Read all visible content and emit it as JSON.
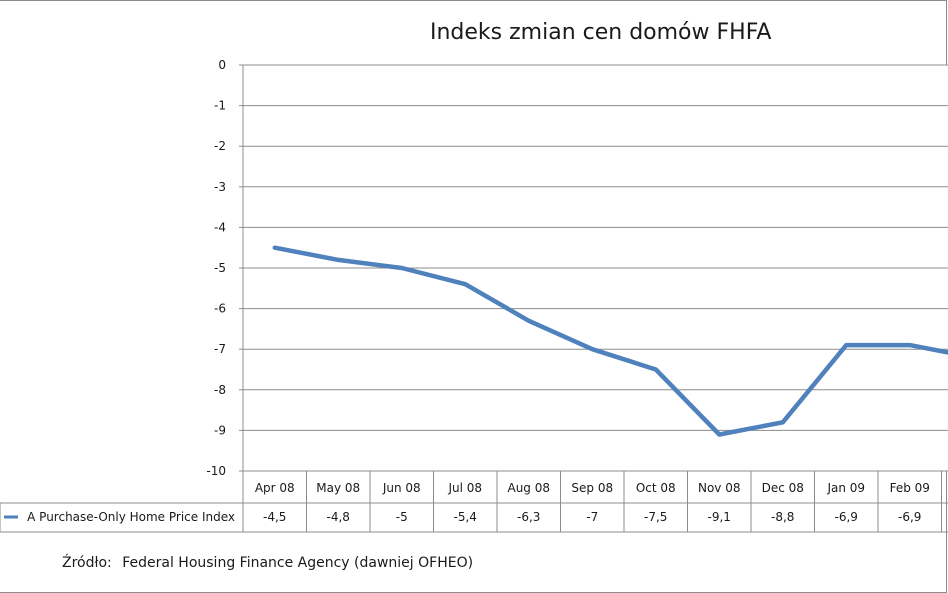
{
  "source": {
    "label": "Źródło:",
    "text": "Federal Housing Finance Agency (dawniej OFHEO)"
  },
  "colors": {
    "line": "#4f81bd",
    "grid": "#8c8c8c",
    "plot_background": "#ffffff"
  },
  "chart_data": {
    "type": "line",
    "title": "Indeks zmian cen domów FHFA",
    "xlabel": "",
    "ylabel": "",
    "ylim": [
      -10,
      0
    ],
    "yticks": [
      "0",
      "-1",
      "-2",
      "-3",
      "-4",
      "-5",
      "-6",
      "-7",
      "-8",
      "-9",
      "-10"
    ],
    "grid": true,
    "categories": [
      "Apr 08",
      "May 08",
      "Jun 08",
      "Jul 08",
      "Aug 08",
      "Sep 08",
      "Oct 08",
      "Nov 08",
      "Dec 08",
      "Jan 09",
      "Feb 09",
      ""
    ],
    "series": [
      {
        "name": "A Purchase-Only Home Price Index",
        "values": [
          -4.5,
          -4.8,
          -5.0,
          -5.4,
          -6.3,
          -7.0,
          -7.5,
          -9.1,
          -8.8,
          -6.9,
          -6.9,
          -7.2
        ],
        "labels": [
          "-4,5",
          "-4,8",
          "-5",
          "-5,4",
          "-6,3",
          "-7",
          "-7,5",
          "-9,1",
          "-8,8",
          "-6,9",
          "-6,9",
          ""
        ]
      }
    ],
    "data_table": true
  }
}
